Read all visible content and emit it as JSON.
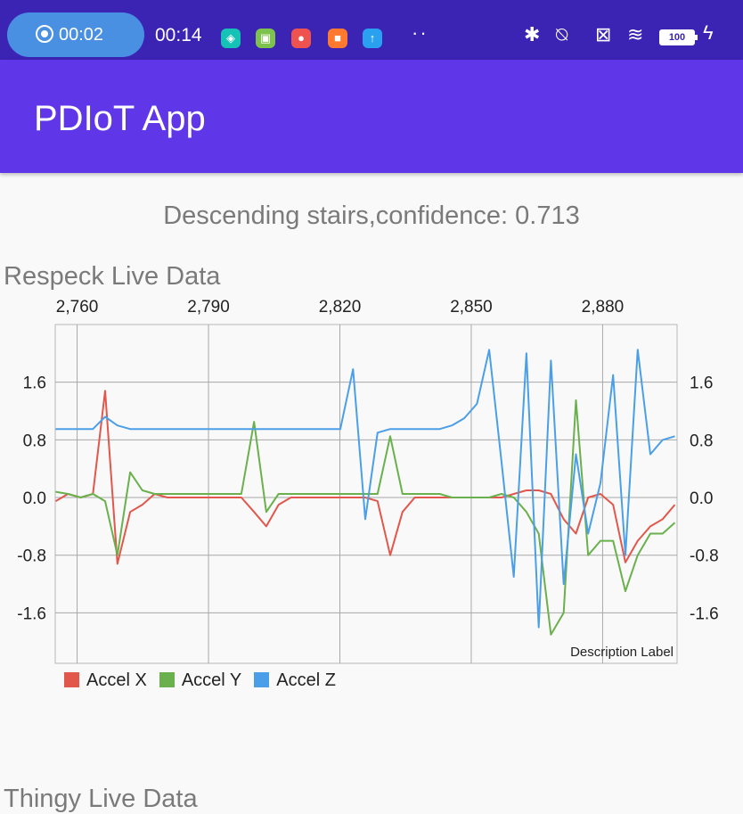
{
  "status_bar": {
    "recording_time": "00:02",
    "clock": "00:14",
    "notifications": [
      {
        "icon": "shield-icon",
        "color": "#16c2b5",
        "glyph": "◈"
      },
      {
        "icon": "android-icon",
        "color": "#7ec24e",
        "glyph": "▣"
      },
      {
        "icon": "record-app-icon",
        "color": "#ef5350",
        "glyph": "●"
      },
      {
        "icon": "video-icon",
        "color": "#ff7a2e",
        "glyph": "■"
      },
      {
        "icon": "upload-icon",
        "color": "#2aa0f0",
        "glyph": "↑"
      }
    ],
    "more": "··",
    "battery": "100"
  },
  "app_bar": {
    "title": "PDIoT App"
  },
  "prediction_text": "Descending stairs,confidence: 0.713",
  "respeck_chart": {
    "title": "Respeck Live Data",
    "description_label": "Description Label",
    "legend": [
      {
        "label": "Accel X",
        "color": "#e2574c"
      },
      {
        "label": "Accel Y",
        "color": "#6ab04c"
      },
      {
        "label": "Accel Z",
        "color": "#4a9fe8"
      }
    ]
  },
  "thingy_chart": {
    "title": "Thingy Live Data"
  },
  "chart_data": {
    "type": "line",
    "title": "Respeck Live Data",
    "x": [
      2755.1,
      2757.9,
      2760.8,
      2763.6,
      2766.4,
      2769.2,
      2772.1,
      2774.9,
      2777.7,
      2780.6,
      2783.4,
      2786.2,
      2789.0,
      2791.9,
      2794.7,
      2797.5,
      2800.4,
      2803.2,
      2806.0,
      2808.8,
      2811.7,
      2814.5,
      2817.3,
      2820.1,
      2823.0,
      2825.8,
      2828.6,
      2831.5,
      2834.3,
      2837.1,
      2839.9,
      2842.8,
      2845.6,
      2848.4,
      2851.3,
      2854.1,
      2856.9,
      2859.7,
      2862.6,
      2865.4,
      2868.2,
      2871.1,
      2873.9,
      2876.7,
      2879.5,
      2882.4,
      2885.2,
      2888.0,
      2890.9,
      2893.7,
      2896.5
    ],
    "series": [
      {
        "name": "Accel X",
        "values": [
          -0.05,
          0.05,
          0.0,
          0.05,
          1.48,
          -0.92,
          -0.2,
          -0.1,
          0.05,
          0.0,
          0.0,
          0.0,
          0.0,
          0.0,
          0.0,
          0.0,
          -0.2,
          -0.4,
          -0.1,
          0.0,
          0.0,
          0.0,
          0.0,
          0.0,
          0.0,
          0.0,
          -0.05,
          -0.8,
          -0.2,
          0.0,
          0.0,
          0.0,
          0.0,
          0.0,
          0.0,
          0.0,
          0.0,
          0.05,
          0.1,
          0.1,
          0.05,
          -0.3,
          -0.5,
          0.0,
          0.05,
          -0.1,
          -0.9,
          -0.6,
          -0.4,
          -0.3,
          -0.1
        ]
      },
      {
        "name": "Accel Y",
        "values": [
          0.08,
          0.05,
          0.0,
          0.05,
          -0.05,
          -0.8,
          0.35,
          0.1,
          0.05,
          0.05,
          0.05,
          0.05,
          0.05,
          0.05,
          0.05,
          0.05,
          1.05,
          -0.2,
          0.05,
          0.05,
          0.05,
          0.05,
          0.05,
          0.05,
          0.05,
          0.05,
          0.05,
          0.85,
          0.05,
          0.05,
          0.05,
          0.05,
          0.0,
          0.0,
          0.0,
          0.0,
          0.05,
          0.0,
          -0.2,
          -0.5,
          -1.9,
          -1.6,
          1.35,
          -0.8,
          -0.6,
          -0.6,
          -1.3,
          -0.8,
          -0.5,
          -0.5,
          -0.35
        ]
      },
      {
        "name": "Accel Z",
        "values": [
          0.95,
          0.95,
          0.95,
          0.95,
          1.12,
          1.0,
          0.95,
          0.95,
          0.95,
          0.95,
          0.95,
          0.95,
          0.95,
          0.95,
          0.95,
          0.95,
          0.95,
          0.95,
          0.95,
          0.95,
          0.95,
          0.95,
          0.95,
          0.95,
          1.78,
          -0.3,
          0.9,
          0.95,
          0.95,
          0.95,
          0.95,
          0.95,
          1.0,
          1.1,
          1.3,
          2.05,
          0.5,
          -1.1,
          2.0,
          -1.8,
          1.9,
          -1.2,
          0.6,
          -0.5,
          0.2,
          1.7,
          -0.8,
          2.05,
          0.6,
          0.8,
          0.85
        ]
      }
    ],
    "x_ticks": [
      "2,760",
      "2,790",
      "2,820",
      "2,850",
      "2,880"
    ],
    "y_ticks_left": [
      "1.6",
      "0.8",
      "0.0",
      "-0.8",
      "-1.6"
    ],
    "y_ticks_right": [
      "1.6",
      "0.8",
      "0.0",
      "-0.8",
      "-1.6"
    ],
    "xlim": [
      2755,
      2897
    ],
    "ylim": [
      -2.3,
      2.4
    ],
    "grid": true,
    "legend_position": "bottom-left"
  }
}
